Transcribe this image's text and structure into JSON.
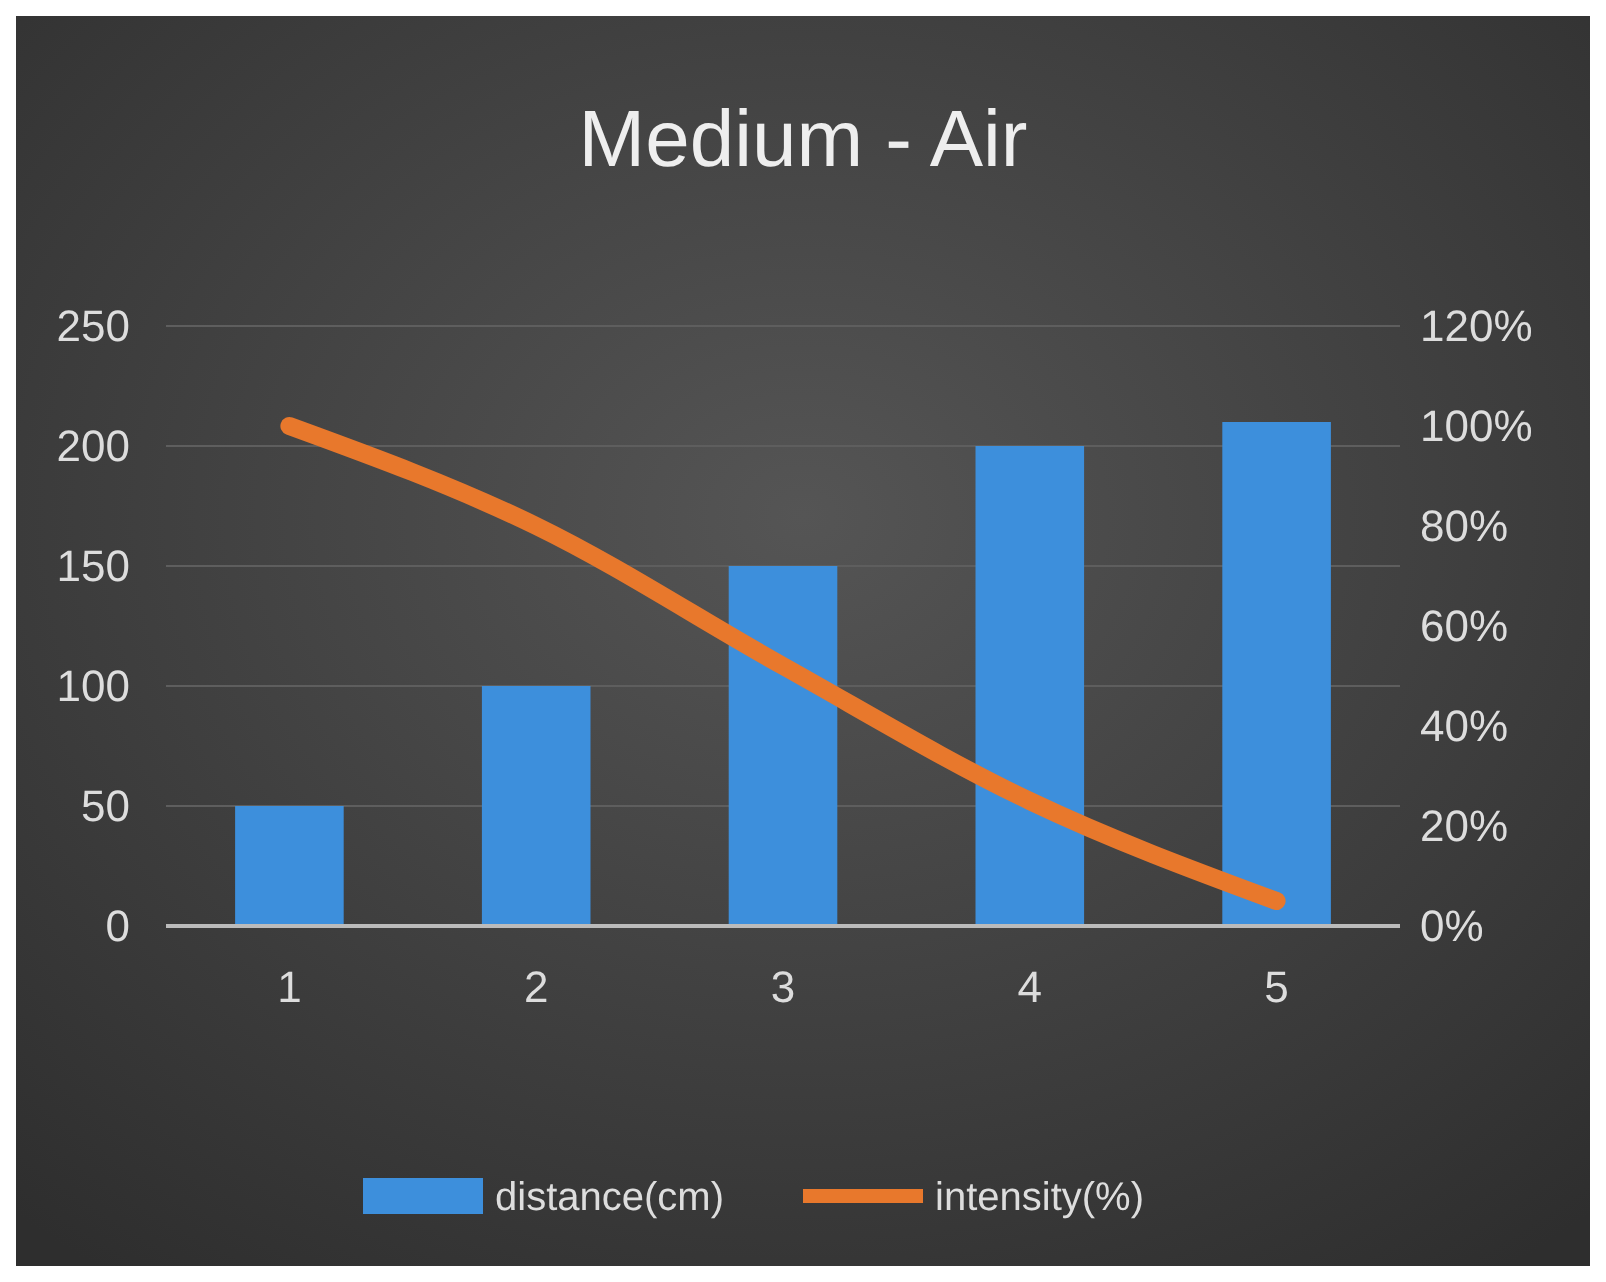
{
  "chart_data": {
    "type": "bar",
    "title": "Medium - Air",
    "categories": [
      "1",
      "2",
      "3",
      "4",
      "5"
    ],
    "series": [
      {
        "name": "distance(cm)",
        "color": "#3d8fdc",
        "values": [
          50,
          100,
          150,
          200,
          210
        ]
      },
      {
        "name": "intensity(%)",
        "type": "line",
        "axis": "y2",
        "color": "#e8782c",
        "values": [
          100,
          80,
          52,
          25,
          5
        ]
      }
    ],
    "ylim": [
      0,
      250
    ],
    "yticks": [
      0,
      50,
      100,
      150,
      200,
      250
    ],
    "y2lim": [
      0,
      120
    ],
    "y2ticks": [
      {
        "value": 0,
        "label": "0%"
      },
      {
        "value": 20,
        "label": "20%"
      },
      {
        "value": 40,
        "label": "40%"
      },
      {
        "value": 60,
        "label": "60%"
      },
      {
        "value": 80,
        "label": "80%"
      },
      {
        "value": 100,
        "label": "100%"
      },
      {
        "value": 120,
        "label": "120%"
      }
    ],
    "grid": "y",
    "legend": "bottom",
    "marker": "none",
    "line_style": "solid"
  }
}
